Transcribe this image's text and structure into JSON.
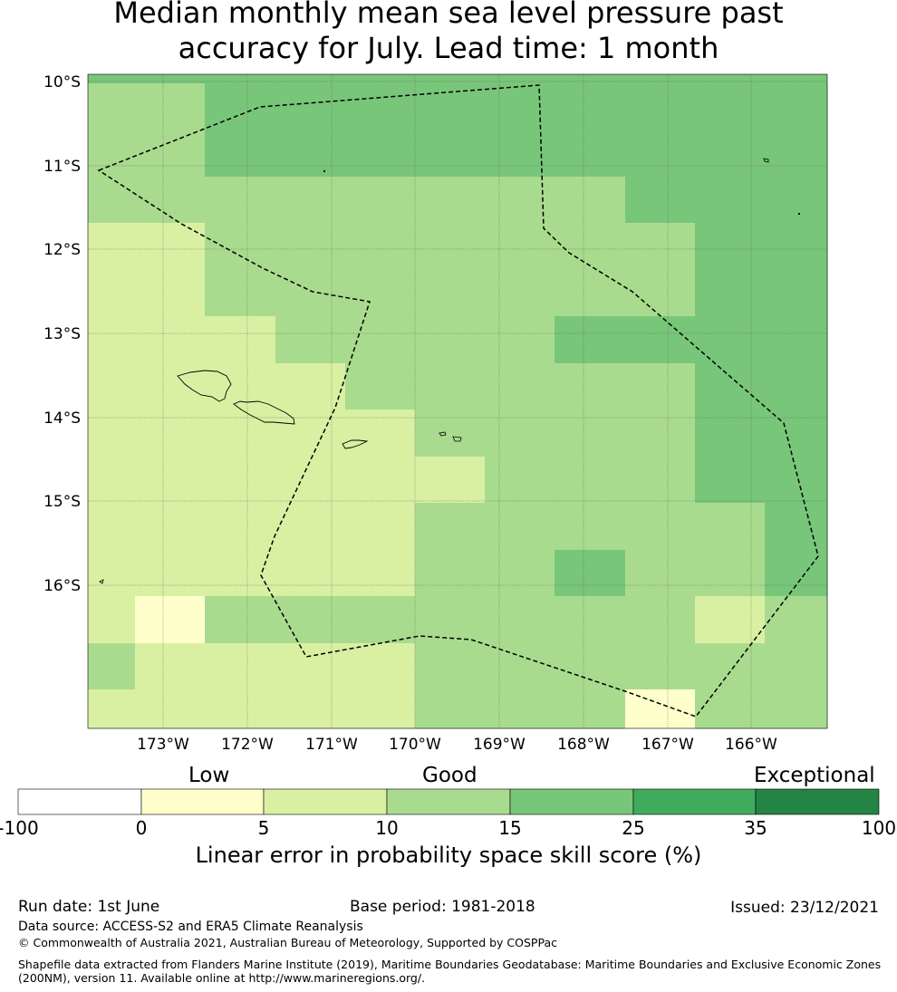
{
  "title": {
    "line1": "Median monthly mean sea level pressure past",
    "line2": "accuracy for July. Lead time: 1 month"
  },
  "map": {
    "lat_labels": [
      "10°S",
      "11°S",
      "12°S",
      "13°S",
      "14°S",
      "15°S",
      "16°S"
    ],
    "lon_labels": [
      "173°W",
      "172°W",
      "171°W",
      "170°W",
      "169°W",
      "168°W",
      "167°W",
      "166°W"
    ],
    "extent": {
      "lon_min": -173.89,
      "lon_max": -165.08,
      "lat_min": -17.79,
      "lat_max": -10.12
    },
    "grid_skill_colors_rows": [
      [
        "#a9db8e",
        "#a9db8e",
        "#78c679",
        "#78c679",
        "#78c679",
        "#78c679",
        "#78c679",
        "#78c679",
        "#78c679",
        "#78c679",
        "#78c679"
      ],
      [
        "#a9db8e",
        "#a9db8e",
        "#a9db8e",
        "#a9db8e",
        "#a9db8e",
        "#a9db8e",
        "#a9db8e",
        "#a9db8e",
        "#78c679",
        "#78c679",
        "#78c679"
      ],
      [
        "#d9f0a3",
        "#d9f0a3",
        "#a9db8e",
        "#a9db8e",
        "#a9db8e",
        "#a9db8e",
        "#a9db8e",
        "#a9db8e",
        "#a9db8e",
        "#78c679",
        "#78c679"
      ],
      [
        "#d9f0a3",
        "#d9f0a3",
        "#d9f0a3",
        "#a9db8e",
        "#a9db8e",
        "#a9db8e",
        "#a9db8e",
        "#78c679",
        "#78c679",
        "#78c679",
        "#78c679"
      ],
      [
        "#d9f0a3",
        "#d9f0a3",
        "#d9f0a3",
        "#d9f0a3",
        "#a9db8e",
        "#a9db8e",
        "#a9db8e",
        "#a9db8e",
        "#a9db8e",
        "#78c679",
        "#78c679"
      ],
      [
        "#d9f0a3",
        "#d9f0a3",
        "#d9f0a3",
        "#d9f0a3",
        "#d9f0a3",
        "#a9db8e",
        "#a9db8e",
        "#a9db8e",
        "#a9db8e",
        "#78c679",
        "#78c679"
      ],
      [
        "#d9f0a3",
        "#d9f0a3",
        "#d9f0a3",
        "#d9f0a3",
        "#d9f0a3",
        "#d9f0a3",
        "#a9db8e",
        "#a9db8e",
        "#a9db8e",
        "#78c679",
        "#78c679"
      ],
      [
        "#d9f0a3",
        "#d9f0a3",
        "#d9f0a3",
        "#d9f0a3",
        "#d9f0a3",
        "#a9db8e",
        "#a9db8e",
        "#a9db8e",
        "#a9db8e",
        "#a9db8e",
        "#78c679"
      ],
      [
        "#d9f0a3",
        "#d9f0a3",
        "#d9f0a3",
        "#d9f0a3",
        "#d9f0a3",
        "#a9db8e",
        "#a9db8e",
        "#78c679",
        "#a9db8e",
        "#a9db8e",
        "#78c679"
      ],
      [
        "#d9f0a3",
        "#ffffcc",
        "#a9db8e",
        "#a9db8e",
        "#a9db8e",
        "#a9db8e",
        "#a9db8e",
        "#a9db8e",
        "#a9db8e",
        "#d9f0a3",
        "#a9db8e"
      ],
      [
        "#a9db8e",
        "#d9f0a3",
        "#d9f0a3",
        "#d9f0a3",
        "#d9f0a3",
        "#a9db8e",
        "#a9db8e",
        "#a9db8e",
        "#a9db8e",
        "#a9db8e",
        "#a9db8e"
      ],
      [
        "#d9f0a3",
        "#d9f0a3",
        "#d9f0a3",
        "#d9f0a3",
        "#d9f0a3",
        "#a9db8e",
        "#a9db8e",
        "#a9db8e",
        "#ffffcc",
        "#a9db8e",
        "#a9db8e"
      ]
    ]
  },
  "colorbar": {
    "categories": [
      "Low",
      "Good",
      "Exceptional"
    ],
    "ticks": [
      "-100",
      "0",
      "5",
      "10",
      "15",
      "25",
      "35",
      "100"
    ],
    "colors": [
      "#ffffff",
      "#ffffcc",
      "#d9f0a3",
      "#a9db8e",
      "#78c679",
      "#41ab5d",
      "#238443"
    ],
    "label": "Linear error in probability space skill score (%)"
  },
  "footer": {
    "run_date": "Run date: 1st June",
    "base_period": "Base period: 1981-2018",
    "issued": "Issued: 23/12/2021",
    "data_source": "Data source: ACCESS-S2 and ERA5 Climate Reanalysis",
    "copyright": "© Commonwealth of Australia 2021, Australian Bureau of Meteorology, Supported by COSPPac",
    "shapefile_line1": "Shapefile data extracted from Flanders Marine Institute (2019), Maritime Boundaries Geodatabase: Maritime Boundaries and Exclusive Economic Zones",
    "shapefile_line2": "(200NM), version 11. Available online at http://www.marineregions.org/."
  }
}
